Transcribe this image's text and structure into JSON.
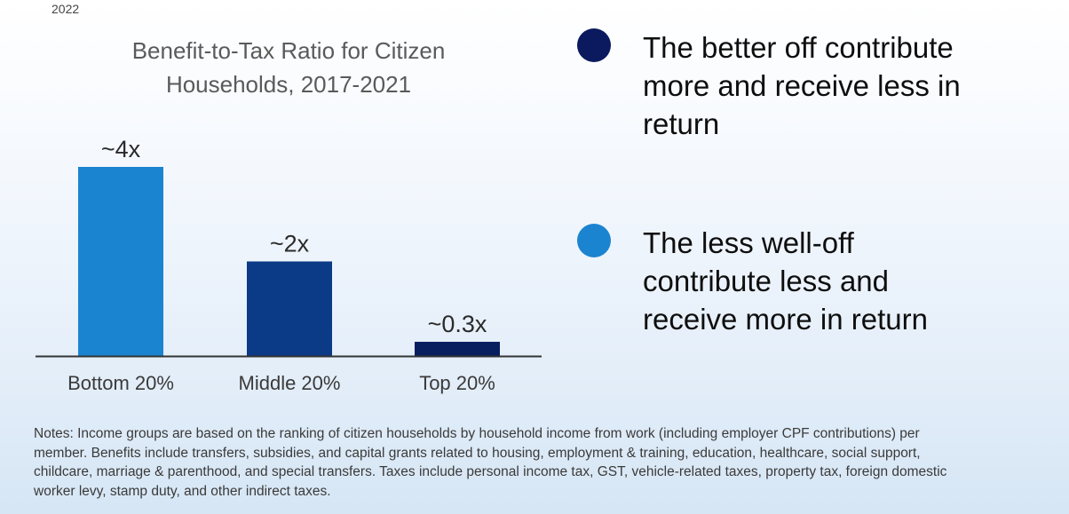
{
  "header": {
    "year": "2022"
  },
  "chart_data": {
    "type": "bar",
    "title": "Benefit-to-Tax Ratio for Citizen Households, 2017-2021",
    "categories": [
      "Bottom 20%",
      "Middle 20%",
      "Top 20%"
    ],
    "values": [
      4,
      2,
      0.3
    ],
    "data_labels": [
      "~4x",
      "~2x",
      "~0.3x"
    ],
    "bar_colors": [
      "#1b84d0",
      "#0b3a86",
      "#071f5f"
    ],
    "xlabel": "",
    "ylabel": "",
    "ylim": [
      0,
      4.2
    ],
    "grid": false
  },
  "legend": [
    {
      "color": "#0b1a5e",
      "text_line1": "The better off contribute",
      "text_line2": "more and receive less in",
      "text_line3": "return"
    },
    {
      "color": "#1b84d0",
      "text_line1": "The less well-off",
      "text_line2": "contribute less and",
      "text_line3": "receive more in return"
    }
  ],
  "notes": {
    "line1": "Notes: Income groups are based on the ranking of citizen households by household income from work (including employer CPF contributions) per",
    "line2": "member. Benefits include transfers, subsidies, and capital grants related to housing, employment & training, education, healthcare, social support,",
    "line3": "childcare, marriage & parenthood, and special transfers. Taxes include personal income tax, GST, vehicle-related taxes, property tax, foreign domestic",
    "line4": "worker levy, stamp duty, and other indirect taxes."
  }
}
